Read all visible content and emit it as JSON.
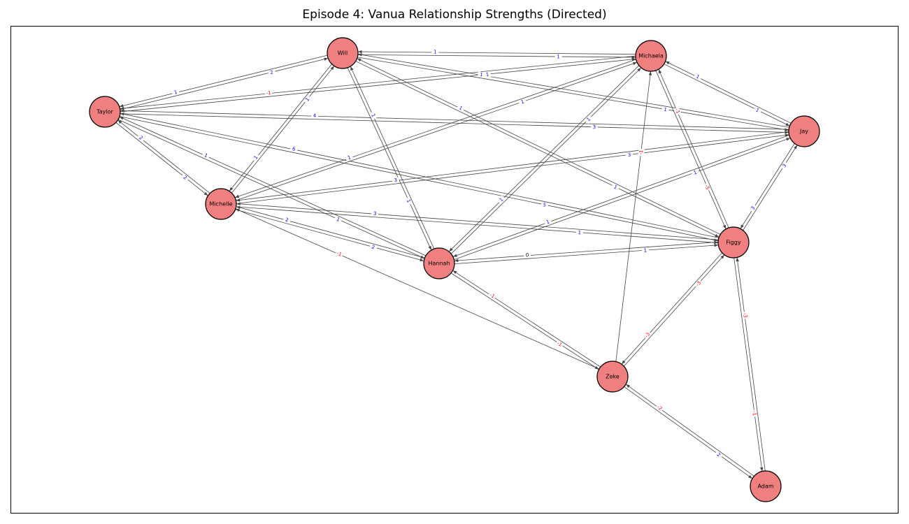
{
  "title": "Episode 4: Vanua Relationship Strengths (Directed)",
  "colors": {
    "node_fill": "#f08080",
    "node_stroke": "#000000",
    "edge": "#444444",
    "positive_label": "#0000ff",
    "negative_label": "#ff0000",
    "zero_label": "#000000"
  },
  "nodes": [
    {
      "id": "Will",
      "label": "Will"
    },
    {
      "id": "Michaela",
      "label": "Michaela"
    },
    {
      "id": "Taylor",
      "label": "Taylor"
    },
    {
      "id": "Jay",
      "label": "Jay"
    },
    {
      "id": "Michelle",
      "label": "Michelle"
    },
    {
      "id": "Figgy",
      "label": "Figgy"
    },
    {
      "id": "Hannah",
      "label": "Hannah"
    },
    {
      "id": "Zeke",
      "label": "Zeke"
    },
    {
      "id": "Adam",
      "label": "Adam"
    }
  ],
  "edges": [
    {
      "source": "Will",
      "target": "Michaela",
      "weight": "1"
    },
    {
      "source": "Michaela",
      "target": "Will",
      "weight": "1"
    },
    {
      "source": "Will",
      "target": "Taylor",
      "weight": "1"
    },
    {
      "source": "Taylor",
      "target": "Will",
      "weight": "2"
    },
    {
      "source": "Will",
      "target": "Jay",
      "weight": "1"
    },
    {
      "source": "Jay",
      "target": "Will",
      "weight": "1"
    },
    {
      "source": "Will",
      "target": "Michelle",
      "weight": "1"
    },
    {
      "source": "Michelle",
      "target": "Will",
      "weight": "1"
    },
    {
      "source": "Will",
      "target": "Hannah",
      "weight": "1"
    },
    {
      "source": "Hannah",
      "target": "Will",
      "weight": "1"
    },
    {
      "source": "Will",
      "target": "Figgy",
      "weight": "1"
    },
    {
      "source": "Figgy",
      "target": "Will",
      "weight": "1"
    },
    {
      "source": "Michaela",
      "target": "Taylor",
      "weight": "-1"
    },
    {
      "source": "Taylor",
      "target": "Michaela",
      "weight": "1"
    },
    {
      "source": "Michaela",
      "target": "Jay",
      "weight": "1"
    },
    {
      "source": "Jay",
      "target": "Michaela",
      "weight": "1"
    },
    {
      "source": "Michaela",
      "target": "Michelle",
      "weight": "1"
    },
    {
      "source": "Michelle",
      "target": "Michaela",
      "weight": "1"
    },
    {
      "source": "Michaela",
      "target": "Hannah",
      "weight": "1"
    },
    {
      "source": "Hannah",
      "target": "Michaela",
      "weight": "1"
    },
    {
      "source": "Michaela",
      "target": "Figgy",
      "weight": "-5"
    },
    {
      "source": "Figgy",
      "target": "Michaela",
      "weight": "-1"
    },
    {
      "source": "Zeke",
      "target": "Michaela",
      "weight": "-1"
    },
    {
      "source": "Taylor",
      "target": "Jay",
      "weight": "3"
    },
    {
      "source": "Jay",
      "target": "Taylor",
      "weight": "4"
    },
    {
      "source": "Taylor",
      "target": "Michelle",
      "weight": "2"
    },
    {
      "source": "Michelle",
      "target": "Taylor",
      "weight": "2"
    },
    {
      "source": "Taylor",
      "target": "Figgy",
      "weight": "5"
    },
    {
      "source": "Figgy",
      "target": "Taylor",
      "weight": "6"
    },
    {
      "source": "Taylor",
      "target": "Hannah",
      "weight": "1"
    },
    {
      "source": "Hannah",
      "target": "Taylor",
      "weight": "1"
    },
    {
      "source": "Jay",
      "target": "Michelle",
      "weight": "3"
    },
    {
      "source": "Michelle",
      "target": "Jay",
      "weight": "3"
    },
    {
      "source": "Jay",
      "target": "Hannah",
      "weight": "1"
    },
    {
      "source": "Hannah",
      "target": "Jay",
      "weight": "1"
    },
    {
      "source": "Jay",
      "target": "Figgy",
      "weight": "3"
    },
    {
      "source": "Figgy",
      "target": "Jay",
      "weight": "3"
    },
    {
      "source": "Michelle",
      "target": "Figgy",
      "weight": "1"
    },
    {
      "source": "Figgy",
      "target": "Michelle",
      "weight": "3"
    },
    {
      "source": "Michelle",
      "target": "Hannah",
      "weight": "2"
    },
    {
      "source": "Hannah",
      "target": "Michelle",
      "weight": "2"
    },
    {
      "source": "Zeke",
      "target": "Michelle",
      "weight": "-1"
    },
    {
      "source": "Hannah",
      "target": "Figgy",
      "weight": "1"
    },
    {
      "source": "Figgy",
      "target": "Hannah",
      "weight": "0"
    },
    {
      "source": "Hannah",
      "target": "Zeke",
      "weight": "-1"
    },
    {
      "source": "Zeke",
      "target": "Hannah",
      "weight": "-1"
    },
    {
      "source": "Figgy",
      "target": "Zeke",
      "weight": "-3"
    },
    {
      "source": "Zeke",
      "target": "Figgy",
      "weight": "-3"
    },
    {
      "source": "Figgy",
      "target": "Adam",
      "weight": "-1"
    },
    {
      "source": "Adam",
      "target": "Figgy",
      "weight": "-3"
    },
    {
      "source": "Zeke",
      "target": "Adam",
      "weight": "2"
    },
    {
      "source": "Adam",
      "target": "Zeke",
      "weight": "-2"
    }
  ]
}
